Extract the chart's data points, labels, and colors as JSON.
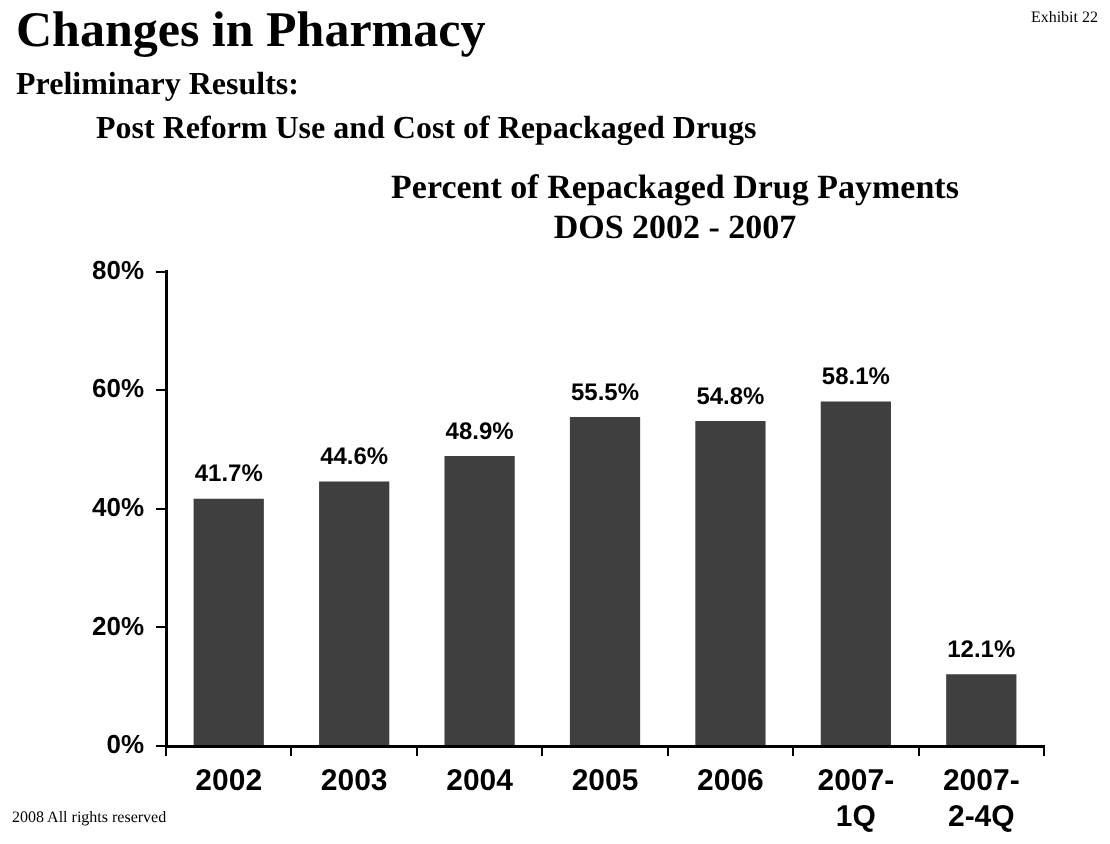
{
  "chart_data": {
    "type": "bar",
    "title": "Changes in Pharmacy",
    "subtitle": "Preliminary Results:",
    "annotations": [
      "Post Reform Use and Cost of Repackaged Drugs",
      "Percent of Repackaged Drug Payments",
      "DOS 2002 - 2007",
      "Exhibit 22",
      "2008 All rights reserved"
    ],
    "categories": [
      "2002",
      "2003",
      "2004",
      "2005",
      "2006",
      "2007-\n1Q",
      "2007-\n2-4Q"
    ],
    "values": [
      41.7,
      44.6,
      48.9,
      55.5,
      54.8,
      58.1,
      12.1
    ],
    "value_labels": [
      "41.7%",
      "44.6%",
      "48.9%",
      "55.5%",
      "54.8%",
      "58.1%",
      "12.1%"
    ],
    "color": "#3f3f3f",
    "ylim": [
      0,
      80
    ],
    "yticks": [
      {
        "value": 0,
        "label": "0%"
      },
      {
        "value": 20,
        "label": "20%"
      },
      {
        "value": 40,
        "label": "40%"
      },
      {
        "value": 60,
        "label": "60%"
      },
      {
        "value": 80,
        "label": "80%"
      }
    ],
    "grid": false,
    "legend": false
  }
}
